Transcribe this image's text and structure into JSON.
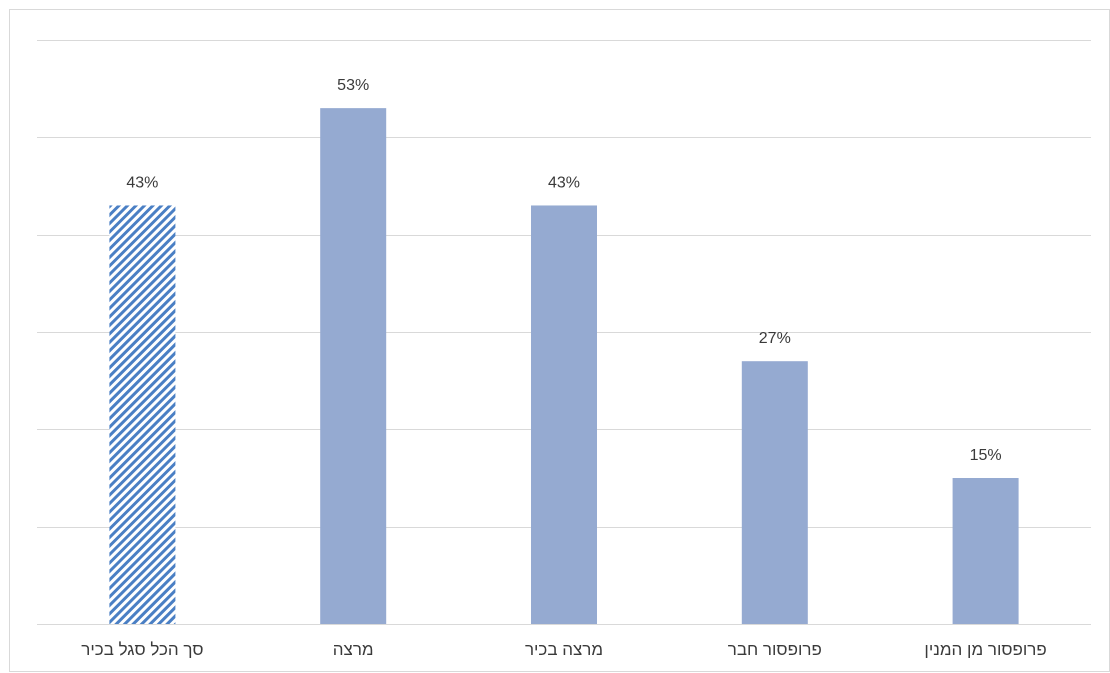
{
  "chart_data": {
    "type": "bar",
    "title": "",
    "xlabel": "",
    "ylabel": "",
    "categories": [
      "סך הכל סגל בכיר",
      "מרצה",
      "מרצה בכיר",
      "פרופסור חבר",
      "פרופסור מן המנין"
    ],
    "values": [
      43,
      53,
      43,
      27,
      15
    ],
    "data_labels": [
      "43%",
      "53%",
      "43%",
      "27%",
      "15%"
    ],
    "unit": "%",
    "ylim": [
      0,
      60
    ],
    "gridlines": [
      0,
      10,
      20,
      30,
      40,
      50,
      60
    ],
    "y_axis_tick_labels_shown": false,
    "grid": true,
    "legend": "none",
    "highlighted_category_index": 0,
    "colors": {
      "bar": "#95aad1",
      "highlight_pattern": "#4a7fc4",
      "highlight_background": "#ffffff",
      "gridline": "#d9d9d9",
      "frame": "#d9d9d9",
      "text": "#3a3a3a"
    }
  }
}
